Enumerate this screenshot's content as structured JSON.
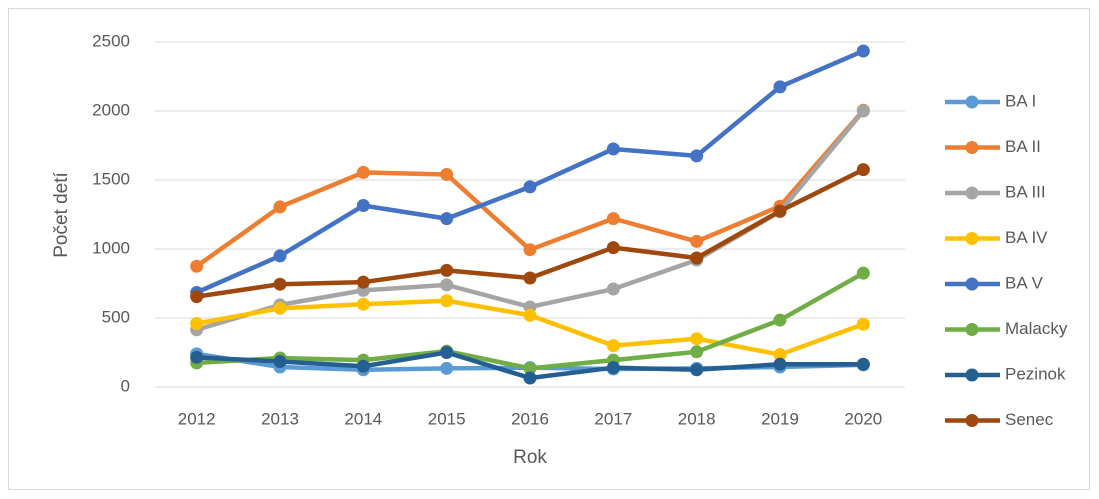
{
  "chart_data": {
    "type": "line",
    "x_label": "Rok",
    "y_label": "Počet detí",
    "categories": [
      "2012",
      "2013",
      "2014",
      "2015",
      "2016",
      "2017",
      "2018",
      "2019",
      "2020"
    ],
    "ylim": [
      0,
      2500
    ],
    "yticks": [
      0,
      500,
      1000,
      1500,
      2000,
      2500
    ],
    "grid": true,
    "legend": "right",
    "series": [
      {
        "name": "BA I",
        "color": "#5b9bd5",
        "values": [
          240,
          145,
          125,
          135,
          140,
          130,
          135,
          145,
          160
        ]
      },
      {
        "name": "BA II",
        "color": "#ed7d31",
        "values": [
          875,
          1305,
          1555,
          1540,
          995,
          1220,
          1055,
          1310,
          2005
        ]
      },
      {
        "name": "BA III",
        "color": "#a5a5a5",
        "values": [
          415,
          595,
          700,
          740,
          580,
          710,
          920,
          1270,
          2000
        ]
      },
      {
        "name": "BA IV",
        "color": "#ffc000",
        "values": [
          460,
          570,
          600,
          625,
          520,
          300,
          350,
          235,
          455
        ]
      },
      {
        "name": "BA V",
        "color": "#4472c4",
        "values": [
          685,
          950,
          1315,
          1220,
          1450,
          1725,
          1675,
          2175,
          2435
        ]
      },
      {
        "name": "Malacky",
        "color": "#70ad47",
        "values": [
          175,
          210,
          195,
          260,
          135,
          195,
          255,
          485,
          825
        ]
      },
      {
        "name": "Pezinok",
        "color": "#255e91",
        "values": [
          215,
          185,
          150,
          250,
          65,
          140,
          125,
          165,
          165
        ]
      },
      {
        "name": "Senec",
        "color": "#9e480e",
        "values": [
          655,
          745,
          760,
          845,
          790,
          1010,
          935,
          1275,
          1575
        ]
      }
    ]
  }
}
